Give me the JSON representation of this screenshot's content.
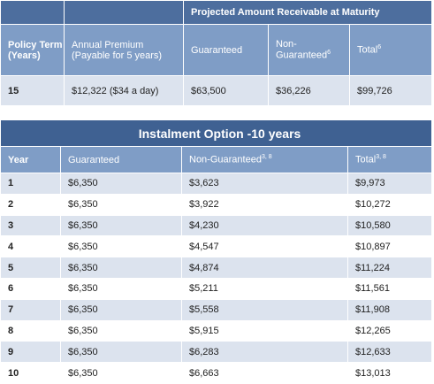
{
  "table1": {
    "group_header": "Projected Amount Receivable at Maturity",
    "headers": [
      {
        "text": "Policy Term (Years)"
      },
      {
        "text": "Annual Premium (Payable for 5 years)"
      },
      {
        "text": "Guaranteed"
      },
      {
        "text": "Non-Guaranteed",
        "sup": "6"
      },
      {
        "text": "Total",
        "sup": "6"
      }
    ],
    "rows": [
      [
        "15",
        "$12,322 ($34 a day)",
        "$63,500",
        "$36,226",
        "$99,726"
      ]
    ]
  },
  "table2": {
    "title": "Instalment Option -10 years",
    "headers": [
      {
        "text": "Year"
      },
      {
        "text": "Guaranteed"
      },
      {
        "text": "Non-Guaranteed",
        "sup": "3, 8"
      },
      {
        "text": "Total",
        "sup": "3, 8"
      }
    ],
    "rows": [
      [
        "1",
        "$6,350",
        "$3,623",
        "$9,973"
      ],
      [
        "2",
        "$6,350",
        "$3,922",
        "$10,272"
      ],
      [
        "3",
        "$6,350",
        "$4,230",
        "$10,580"
      ],
      [
        "4",
        "$6,350",
        "$4,547",
        "$10,897"
      ],
      [
        "5",
        "$6,350",
        "$4,874",
        "$11,224"
      ],
      [
        "6",
        "$6,350",
        "$5,211",
        "$11,561"
      ],
      [
        "7",
        "$6,350",
        "$5,558",
        "$11,908"
      ],
      [
        "8",
        "$6,350",
        "$5,915",
        "$12,265"
      ],
      [
        "9",
        "$6,350",
        "$6,283",
        "$12,633"
      ],
      [
        "10",
        "$6,350",
        "$6,663",
        "$13,013"
      ]
    ]
  }
}
